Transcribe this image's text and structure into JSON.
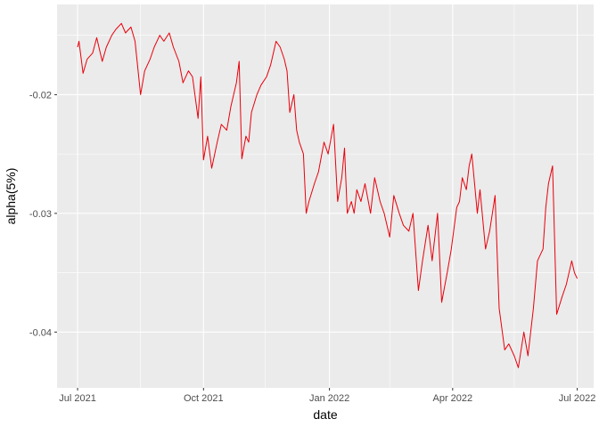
{
  "chart_data": {
    "type": "line",
    "xlabel": "date",
    "ylabel": "alpha(5%)",
    "xlim": [
      "2021-06-16",
      "2022-07-13"
    ],
    "ylim": [
      -0.0447,
      -0.0124
    ],
    "x_ticks": [
      {
        "date": "2021-07-01",
        "label": "Jul 2021"
      },
      {
        "date": "2021-10-01",
        "label": "Oct 2021"
      },
      {
        "date": "2022-01-01",
        "label": "Jan 2022"
      },
      {
        "date": "2022-04-01",
        "label": "Apr 2022"
      },
      {
        "date": "2022-07-01",
        "label": "Jul 2022"
      }
    ],
    "x_minor_ticks": [
      "2021-08-16",
      "2021-11-15",
      "2022-02-14",
      "2022-05-16"
    ],
    "y_ticks": [
      {
        "value": -0.02,
        "label": "-0.02"
      },
      {
        "value": -0.03,
        "label": "-0.03"
      },
      {
        "value": -0.04,
        "label": "-0.04"
      }
    ],
    "y_minor_ticks": [
      -0.015,
      -0.025,
      -0.035
    ],
    "grid": true,
    "colors": {
      "panel": "#ebebeb",
      "grid": "#ffffff",
      "series": "#e8000b"
    },
    "series": [
      {
        "x": [
          "2021-07-01",
          "2021-07-02",
          "2021-07-05",
          "2021-07-08",
          "2021-07-12",
          "2021-07-15",
          "2021-07-19",
          "2021-07-22",
          "2021-07-26",
          "2021-07-29",
          "2021-08-02",
          "2021-08-05",
          "2021-08-09",
          "2021-08-12",
          "2021-08-16",
          "2021-08-19",
          "2021-08-23",
          "2021-08-26",
          "2021-08-30",
          "2021-09-02",
          "2021-09-06",
          "2021-09-09",
          "2021-09-13",
          "2021-09-16",
          "2021-09-20",
          "2021-09-23",
          "2021-09-27",
          "2021-09-29",
          "2021-10-01",
          "2021-10-04",
          "2021-10-07",
          "2021-10-11",
          "2021-10-14",
          "2021-10-18",
          "2021-10-21",
          "2021-10-25",
          "2021-10-27",
          "2021-10-29",
          "2021-11-01",
          "2021-11-03",
          "2021-11-05",
          "2021-11-09",
          "2021-11-12",
          "2021-11-16",
          "2021-11-19",
          "2021-11-23",
          "2021-11-26",
          "2021-11-29",
          "2021-12-01",
          "2021-12-03",
          "2021-12-06",
          "2021-12-08",
          "2021-12-10",
          "2021-12-13",
          "2021-12-15",
          "2021-12-17",
          "2021-12-21",
          "2021-12-24",
          "2021-12-28",
          "2021-12-31",
          "2022-01-04",
          "2022-01-07",
          "2022-01-10",
          "2022-01-12",
          "2022-01-14",
          "2022-01-17",
          "2022-01-19",
          "2022-01-21",
          "2022-01-24",
          "2022-01-27",
          "2022-01-31",
          "2022-02-03",
          "2022-02-07",
          "2022-02-10",
          "2022-02-14",
          "2022-02-17",
          "2022-02-21",
          "2022-02-24",
          "2022-02-28",
          "2022-03-03",
          "2022-03-07",
          "2022-03-10",
          "2022-03-14",
          "2022-03-17",
          "2022-03-21",
          "2022-03-24",
          "2022-03-28",
          "2022-03-31",
          "2022-04-04",
          "2022-04-06",
          "2022-04-08",
          "2022-04-11",
          "2022-04-13",
          "2022-04-15",
          "2022-04-19",
          "2022-04-21",
          "2022-04-25",
          "2022-04-28",
          "2022-05-02",
          "2022-05-05",
          "2022-05-09",
          "2022-05-12",
          "2022-05-16",
          "2022-05-19",
          "2022-05-23",
          "2022-05-26",
          "2022-05-30",
          "2022-06-02",
          "2022-06-06",
          "2022-06-08",
          "2022-06-10",
          "2022-06-13",
          "2022-06-16",
          "2022-06-20",
          "2022-06-23",
          "2022-06-27",
          "2022-06-29",
          "2022-07-01"
        ],
        "y": [
          -0.016,
          -0.0155,
          -0.0182,
          -0.017,
          -0.0165,
          -0.0152,
          -0.0172,
          -0.016,
          -0.015,
          -0.0145,
          -0.014,
          -0.0148,
          -0.0143,
          -0.0155,
          -0.02,
          -0.018,
          -0.017,
          -0.016,
          -0.015,
          -0.0155,
          -0.0148,
          -0.016,
          -0.0172,
          -0.019,
          -0.018,
          -0.0185,
          -0.022,
          -0.0185,
          -0.0255,
          -0.0235,
          -0.0262,
          -0.024,
          -0.0225,
          -0.023,
          -0.021,
          -0.019,
          -0.0172,
          -0.0254,
          -0.0235,
          -0.024,
          -0.0215,
          -0.02,
          -0.0192,
          -0.0185,
          -0.0175,
          -0.0155,
          -0.016,
          -0.017,
          -0.018,
          -0.0215,
          -0.02,
          -0.023,
          -0.024,
          -0.025,
          -0.03,
          -0.029,
          -0.0275,
          -0.0265,
          -0.024,
          -0.025,
          -0.0225,
          -0.029,
          -0.027,
          -0.0245,
          -0.03,
          -0.029,
          -0.03,
          -0.028,
          -0.029,
          -0.0275,
          -0.03,
          -0.027,
          -0.029,
          -0.03,
          -0.032,
          -0.0285,
          -0.03,
          -0.031,
          -0.0315,
          -0.03,
          -0.0365,
          -0.034,
          -0.031,
          -0.034,
          -0.03,
          -0.0375,
          -0.035,
          -0.033,
          -0.0295,
          -0.029,
          -0.027,
          -0.028,
          -0.026,
          -0.025,
          -0.03,
          -0.028,
          -0.033,
          -0.0315,
          -0.0285,
          -0.038,
          -0.0415,
          -0.041,
          -0.042,
          -0.043,
          -0.04,
          -0.042,
          -0.038,
          -0.034,
          -0.033,
          -0.0295,
          -0.0275,
          -0.026,
          -0.0385,
          -0.037,
          -0.036,
          -0.034,
          -0.035,
          -0.0355
        ]
      }
    ]
  }
}
